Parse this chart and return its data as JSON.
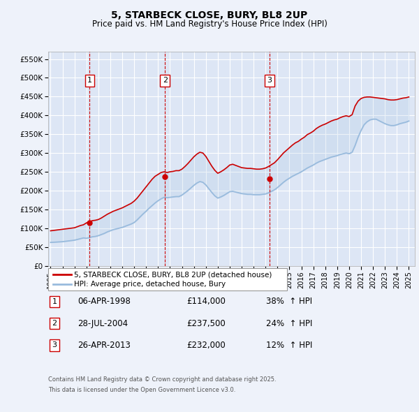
{
  "title": "5, STARBECK CLOSE, BURY, BL8 2UP",
  "subtitle": "Price paid vs. HM Land Registry's House Price Index (HPI)",
  "ylim": [
    0,
    570000
  ],
  "yticks": [
    0,
    50000,
    100000,
    150000,
    200000,
    250000,
    300000,
    350000,
    400000,
    450000,
    500000,
    550000
  ],
  "ytick_labels": [
    "£0",
    "£50K",
    "£100K",
    "£150K",
    "£200K",
    "£250K",
    "£300K",
    "£350K",
    "£400K",
    "£450K",
    "£500K",
    "£550K"
  ],
  "xlim_start": 1994.8,
  "xlim_end": 2025.5,
  "xticks": [
    1995,
    1996,
    1997,
    1998,
    1999,
    2000,
    2001,
    2002,
    2003,
    2004,
    2005,
    2006,
    2007,
    2008,
    2009,
    2010,
    2011,
    2012,
    2013,
    2014,
    2015,
    2016,
    2017,
    2018,
    2019,
    2020,
    2021,
    2022,
    2023,
    2024,
    2025
  ],
  "background_color": "#eef2fa",
  "plot_bg_color": "#dde6f5",
  "grid_color": "#ffffff",
  "red_line_color": "#cc0000",
  "blue_line_color": "#99bbdd",
  "transaction_dashed_color": "#cc0000",
  "transactions": [
    {
      "num": 1,
      "date_str": "06-APR-1998",
      "date_x": 1998.27,
      "price": 114000,
      "pct": "38%",
      "dir": "↑"
    },
    {
      "num": 2,
      "date_str": "28-JUL-2004",
      "date_x": 2004.58,
      "price": 237500,
      "pct": "24%",
      "dir": "↑"
    },
    {
      "num": 3,
      "date_str": "26-APR-2013",
      "date_x": 2013.32,
      "price": 232000,
      "pct": "12%",
      "dir": "↑"
    }
  ],
  "legend_label_red": "5, STARBECK CLOSE, BURY, BL8 2UP (detached house)",
  "legend_label_blue": "HPI: Average price, detached house, Bury",
  "footer_line1": "Contains HM Land Registry data © Crown copyright and database right 2025.",
  "footer_line2": "This data is licensed under the Open Government Licence v3.0.",
  "hpi_data_x": [
    1995.0,
    1995.25,
    1995.5,
    1995.75,
    1996.0,
    1996.25,
    1996.5,
    1996.75,
    1997.0,
    1997.25,
    1997.5,
    1997.75,
    1998.0,
    1998.25,
    1998.5,
    1998.75,
    1999.0,
    1999.25,
    1999.5,
    1999.75,
    2000.0,
    2000.25,
    2000.5,
    2000.75,
    2001.0,
    2001.25,
    2001.5,
    2001.75,
    2002.0,
    2002.25,
    2002.5,
    2002.75,
    2003.0,
    2003.25,
    2003.5,
    2003.75,
    2004.0,
    2004.25,
    2004.5,
    2004.75,
    2005.0,
    2005.25,
    2005.5,
    2005.75,
    2006.0,
    2006.25,
    2006.5,
    2006.75,
    2007.0,
    2007.25,
    2007.5,
    2007.75,
    2008.0,
    2008.25,
    2008.5,
    2008.75,
    2009.0,
    2009.25,
    2009.5,
    2009.75,
    2010.0,
    2010.25,
    2010.5,
    2010.75,
    2011.0,
    2011.25,
    2011.5,
    2011.75,
    2012.0,
    2012.25,
    2012.5,
    2012.75,
    2013.0,
    2013.25,
    2013.5,
    2013.75,
    2014.0,
    2014.25,
    2014.5,
    2014.75,
    2015.0,
    2015.25,
    2015.5,
    2015.75,
    2016.0,
    2016.25,
    2016.5,
    2016.75,
    2017.0,
    2017.25,
    2017.5,
    2017.75,
    2018.0,
    2018.25,
    2018.5,
    2018.75,
    2019.0,
    2019.25,
    2019.5,
    2019.75,
    2020.0,
    2020.25,
    2020.5,
    2020.75,
    2021.0,
    2021.25,
    2021.5,
    2021.75,
    2022.0,
    2022.25,
    2022.5,
    2022.75,
    2023.0,
    2023.25,
    2023.5,
    2023.75,
    2024.0,
    2024.25,
    2024.5,
    2024.75,
    2025.0
  ],
  "hpi_data_y": [
    62000,
    62500,
    63000,
    63500,
    64000,
    65000,
    66000,
    67000,
    68000,
    70000,
    72000,
    74000,
    73000,
    75000,
    77000,
    78000,
    80000,
    83000,
    86000,
    90000,
    93000,
    96000,
    98000,
    100000,
    102000,
    105000,
    108000,
    111000,
    115000,
    122000,
    130000,
    138000,
    145000,
    153000,
    160000,
    167000,
    173000,
    178000,
    182000,
    181000,
    182000,
    183000,
    184000,
    184000,
    188000,
    194000,
    200000,
    207000,
    214000,
    220000,
    224000,
    222000,
    215000,
    205000,
    195000,
    186000,
    180000,
    183000,
    187000,
    192000,
    197000,
    198000,
    196000,
    194000,
    192000,
    191000,
    190000,
    190000,
    189000,
    189000,
    189000,
    190000,
    191000,
    194000,
    198000,
    202000,
    208000,
    215000,
    222000,
    228000,
    233000,
    238000,
    242000,
    246000,
    250000,
    255000,
    260000,
    264000,
    268000,
    273000,
    277000,
    280000,
    283000,
    286000,
    289000,
    291000,
    293000,
    296000,
    298000,
    300000,
    298000,
    302000,
    320000,
    342000,
    360000,
    375000,
    383000,
    388000,
    390000,
    390000,
    386000,
    382000,
    378000,
    375000,
    373000,
    373000,
    375000,
    378000,
    380000,
    382000,
    385000
  ],
  "red_data_x": [
    1995.0,
    1995.25,
    1995.5,
    1995.75,
    1996.0,
    1996.25,
    1996.5,
    1996.75,
    1997.0,
    1997.25,
    1997.5,
    1997.75,
    1998.0,
    1998.25,
    1998.5,
    1998.75,
    1999.0,
    1999.25,
    1999.5,
    1999.75,
    2000.0,
    2000.25,
    2000.5,
    2000.75,
    2001.0,
    2001.25,
    2001.5,
    2001.75,
    2002.0,
    2002.25,
    2002.5,
    2002.75,
    2003.0,
    2003.25,
    2003.5,
    2003.75,
    2004.0,
    2004.25,
    2004.5,
    2004.75,
    2005.0,
    2005.25,
    2005.5,
    2005.75,
    2006.0,
    2006.25,
    2006.5,
    2006.75,
    2007.0,
    2007.25,
    2007.5,
    2007.75,
    2008.0,
    2008.25,
    2008.5,
    2008.75,
    2009.0,
    2009.25,
    2009.5,
    2009.75,
    2010.0,
    2010.25,
    2010.5,
    2010.75,
    2011.0,
    2011.25,
    2011.5,
    2011.75,
    2012.0,
    2012.25,
    2012.5,
    2012.75,
    2013.0,
    2013.25,
    2013.5,
    2013.75,
    2014.0,
    2014.25,
    2014.5,
    2014.75,
    2015.0,
    2015.25,
    2015.5,
    2015.75,
    2016.0,
    2016.25,
    2016.5,
    2016.75,
    2017.0,
    2017.25,
    2017.5,
    2017.75,
    2018.0,
    2018.25,
    2018.5,
    2018.75,
    2019.0,
    2019.25,
    2019.5,
    2019.75,
    2020.0,
    2020.25,
    2020.5,
    2020.75,
    2021.0,
    2021.25,
    2021.5,
    2021.75,
    2022.0,
    2022.25,
    2022.5,
    2022.75,
    2023.0,
    2023.25,
    2023.5,
    2023.75,
    2024.0,
    2024.25,
    2024.5,
    2024.75,
    2025.0
  ],
  "red_data_y": [
    93000,
    94000,
    95000,
    96000,
    97000,
    98000,
    99000,
    100000,
    101000,
    104000,
    107000,
    109000,
    114000,
    117000,
    120000,
    121000,
    123000,
    127000,
    132000,
    137000,
    141000,
    145000,
    148000,
    151000,
    154000,
    158000,
    162000,
    166000,
    172000,
    180000,
    190000,
    200000,
    210000,
    220000,
    230000,
    238000,
    243000,
    248000,
    250000,
    248000,
    250000,
    251000,
    253000,
    253000,
    257000,
    264000,
    272000,
    281000,
    290000,
    297000,
    302000,
    300000,
    291000,
    278000,
    265000,
    254000,
    246000,
    250000,
    255000,
    261000,
    268000,
    270000,
    267000,
    264000,
    261000,
    260000,
    259000,
    259000,
    258000,
    257000,
    257000,
    258000,
    260000,
    264000,
    269000,
    274000,
    282000,
    291000,
    300000,
    307000,
    314000,
    321000,
    327000,
    331000,
    337000,
    342000,
    349000,
    353000,
    358000,
    365000,
    370000,
    374000,
    377000,
    381000,
    385000,
    388000,
    390000,
    394000,
    397000,
    399000,
    397000,
    402000,
    425000,
    438000,
    445000,
    448000,
    449000,
    449000,
    448000,
    447000,
    446000,
    445000,
    444000,
    442000,
    441000,
    441000,
    442000,
    444000,
    446000,
    447000,
    449000
  ]
}
